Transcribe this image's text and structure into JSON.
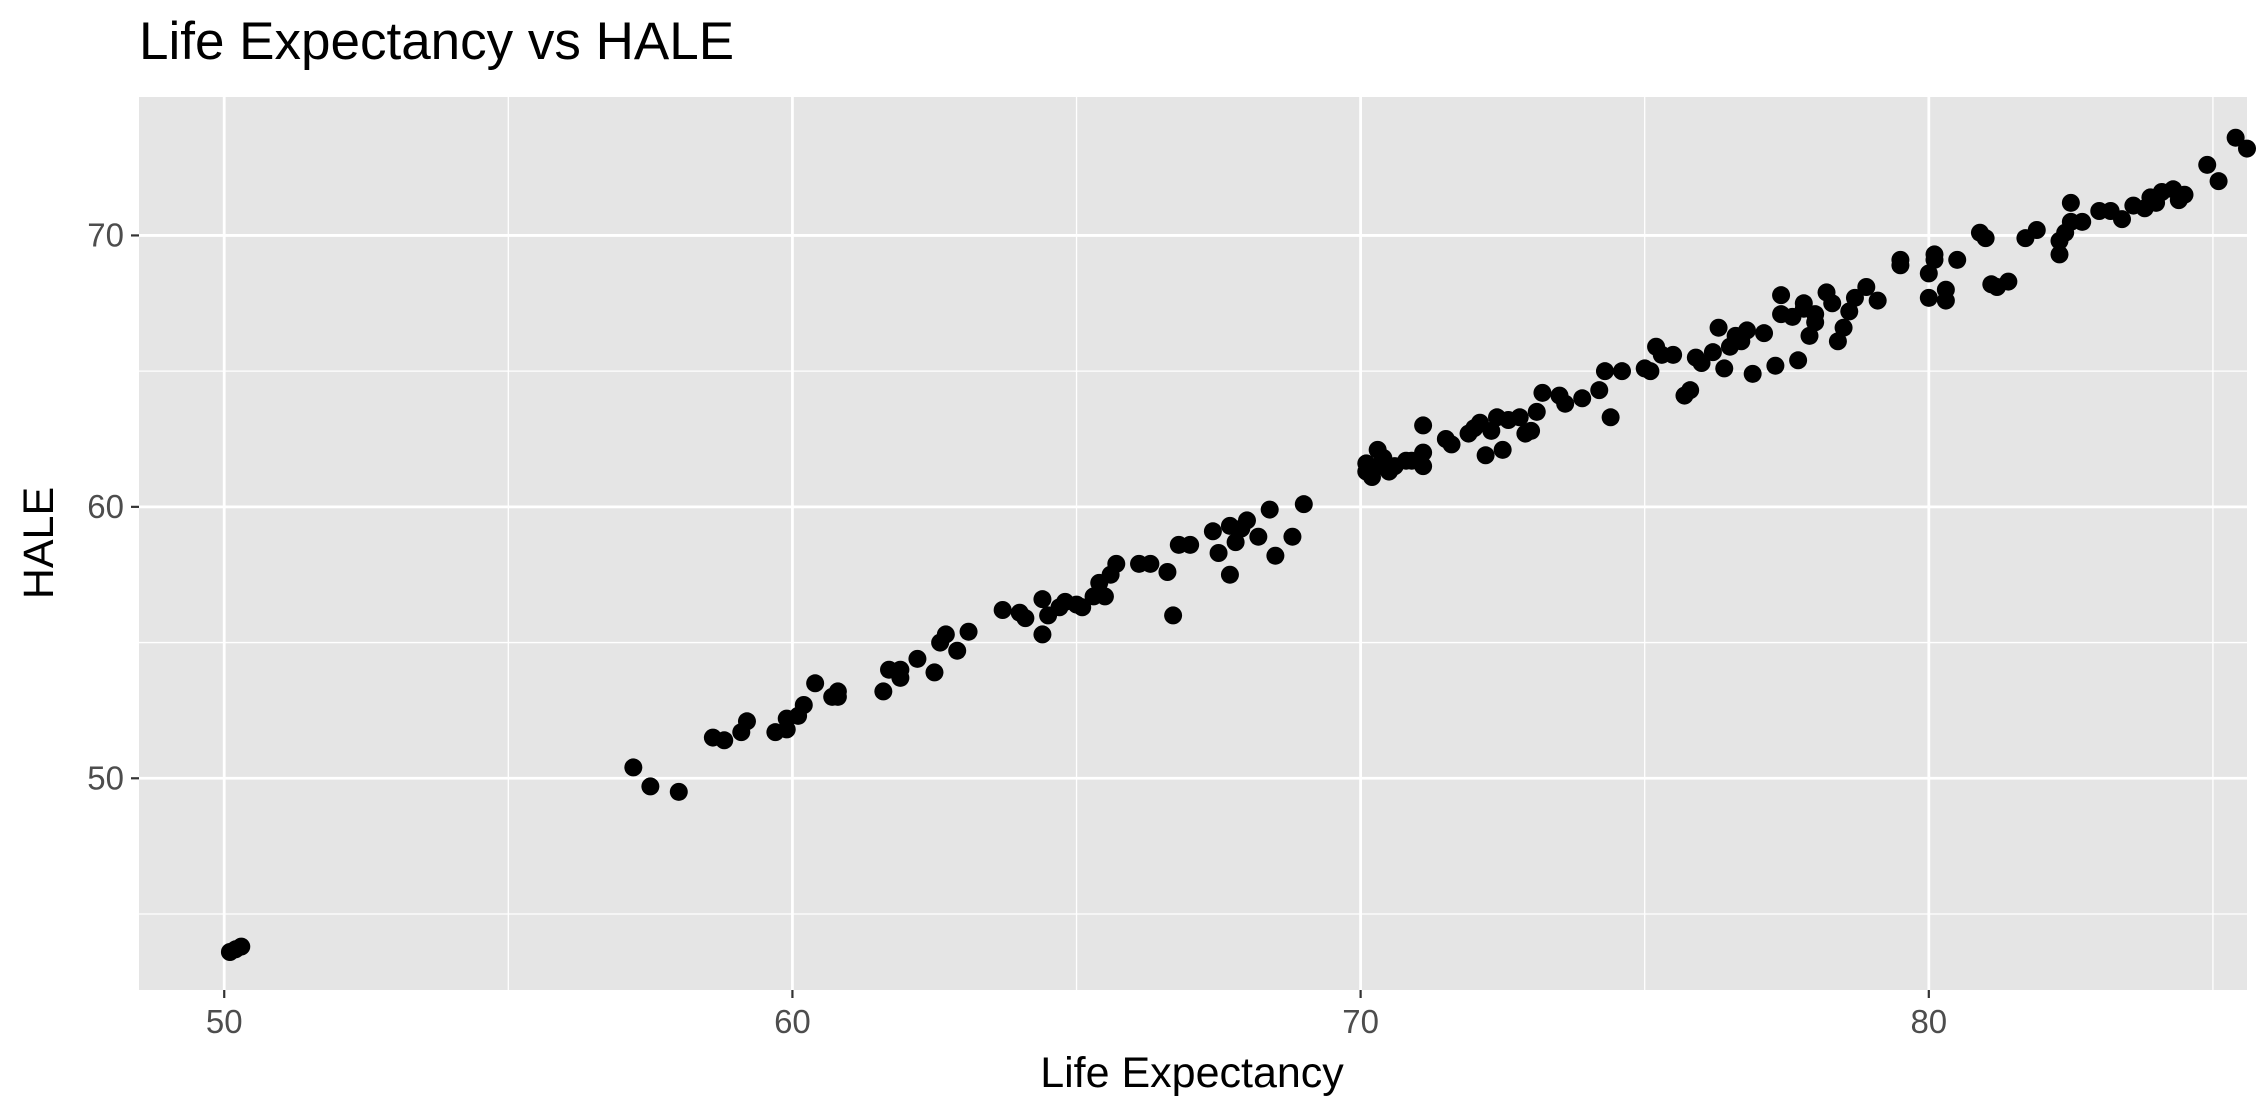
{
  "chart_data": {
    "type": "scatter",
    "title": "Life Expectancy vs HALE",
    "xlabel": "Life Expectancy",
    "ylabel": "HALE",
    "xlim": [
      48.5,
      85.6
    ],
    "ylim": [
      42.2,
      75.1
    ],
    "x_ticks": [
      50,
      60,
      70,
      80
    ],
    "x_tick_labels": [
      "50",
      "60",
      "70",
      "80"
    ],
    "y_ticks": [
      50,
      60,
      70
    ],
    "y_tick_labels": [
      "50",
      "60",
      "70"
    ],
    "x_minor_gridlines": [
      55,
      65,
      75,
      85
    ],
    "y_minor_gridlines": [
      45,
      55,
      65
    ],
    "grid": true,
    "legend": "none",
    "colors": {
      "panel_background": "#e5e5e5",
      "gridline": "#ffffff",
      "point": "#000000",
      "tick_label": "#4d4d4d",
      "text": "#000000"
    },
    "points": [
      {
        "x": 50.1,
        "y": 43.6
      },
      {
        "x": 50.2,
        "y": 43.7
      },
      {
        "x": 50.3,
        "y": 43.8
      },
      {
        "x": 57.2,
        "y": 50.4
      },
      {
        "x": 57.5,
        "y": 49.7
      },
      {
        "x": 58.0,
        "y": 49.5
      },
      {
        "x": 58.6,
        "y": 51.5
      },
      {
        "x": 58.8,
        "y": 51.4
      },
      {
        "x": 59.1,
        "y": 51.7
      },
      {
        "x": 59.2,
        "y": 52.1
      },
      {
        "x": 59.7,
        "y": 51.7
      },
      {
        "x": 59.9,
        "y": 51.8
      },
      {
        "x": 59.9,
        "y": 52.2
      },
      {
        "x": 60.1,
        "y": 52.3
      },
      {
        "x": 60.2,
        "y": 52.7
      },
      {
        "x": 60.4,
        "y": 53.5
      },
      {
        "x": 60.7,
        "y": 53.0
      },
      {
        "x": 60.8,
        "y": 53.2
      },
      {
        "x": 60.8,
        "y": 53.0
      },
      {
        "x": 61.6,
        "y": 53.2
      },
      {
        "x": 61.7,
        "y": 54.0
      },
      {
        "x": 61.9,
        "y": 54.0
      },
      {
        "x": 61.9,
        "y": 53.7
      },
      {
        "x": 62.2,
        "y": 54.4
      },
      {
        "x": 62.5,
        "y": 53.9
      },
      {
        "x": 62.6,
        "y": 55.0
      },
      {
        "x": 62.7,
        "y": 55.3
      },
      {
        "x": 62.9,
        "y": 54.7
      },
      {
        "x": 63.1,
        "y": 55.4
      },
      {
        "x": 63.7,
        "y": 56.2
      },
      {
        "x": 64.0,
        "y": 56.1
      },
      {
        "x": 64.1,
        "y": 55.9
      },
      {
        "x": 64.4,
        "y": 56.6
      },
      {
        "x": 64.4,
        "y": 55.3
      },
      {
        "x": 64.5,
        "y": 56.0
      },
      {
        "x": 64.7,
        "y": 56.3
      },
      {
        "x": 64.8,
        "y": 56.5
      },
      {
        "x": 65.0,
        "y": 56.4
      },
      {
        "x": 65.1,
        "y": 56.3
      },
      {
        "x": 65.3,
        "y": 56.7
      },
      {
        "x": 65.4,
        "y": 57.2
      },
      {
        "x": 65.5,
        "y": 56.7
      },
      {
        "x": 65.6,
        "y": 57.5
      },
      {
        "x": 65.7,
        "y": 57.9
      },
      {
        "x": 66.1,
        "y": 57.9
      },
      {
        "x": 66.3,
        "y": 57.9
      },
      {
        "x": 66.6,
        "y": 57.6
      },
      {
        "x": 66.7,
        "y": 56.0
      },
      {
        "x": 66.8,
        "y": 58.6
      },
      {
        "x": 67.0,
        "y": 58.6
      },
      {
        "x": 67.4,
        "y": 59.1
      },
      {
        "x": 67.5,
        "y": 58.3
      },
      {
        "x": 67.7,
        "y": 59.3
      },
      {
        "x": 67.7,
        "y": 57.5
      },
      {
        "x": 67.8,
        "y": 58.7
      },
      {
        "x": 67.9,
        "y": 59.2
      },
      {
        "x": 68.0,
        "y": 59.5
      },
      {
        "x": 68.2,
        "y": 58.9
      },
      {
        "x": 68.4,
        "y": 59.9
      },
      {
        "x": 68.5,
        "y": 58.2
      },
      {
        "x": 68.8,
        "y": 58.9
      },
      {
        "x": 69.0,
        "y": 60.1
      },
      {
        "x": 70.1,
        "y": 61.3
      },
      {
        "x": 70.1,
        "y": 61.6
      },
      {
        "x": 70.2,
        "y": 61.1
      },
      {
        "x": 70.3,
        "y": 61.5
      },
      {
        "x": 70.3,
        "y": 62.1
      },
      {
        "x": 70.4,
        "y": 61.8
      },
      {
        "x": 70.5,
        "y": 61.3
      },
      {
        "x": 70.6,
        "y": 61.5
      },
      {
        "x": 70.8,
        "y": 61.7
      },
      {
        "x": 70.9,
        "y": 61.7
      },
      {
        "x": 71.1,
        "y": 61.5
      },
      {
        "x": 71.1,
        "y": 62.0
      },
      {
        "x": 71.1,
        "y": 63.0
      },
      {
        "x": 71.5,
        "y": 62.5
      },
      {
        "x": 71.6,
        "y": 62.3
      },
      {
        "x": 71.9,
        "y": 62.7
      },
      {
        "x": 72.0,
        "y": 62.9
      },
      {
        "x": 72.1,
        "y": 63.1
      },
      {
        "x": 72.2,
        "y": 61.9
      },
      {
        "x": 72.3,
        "y": 62.8
      },
      {
        "x": 72.4,
        "y": 63.3
      },
      {
        "x": 72.5,
        "y": 62.1
      },
      {
        "x": 72.6,
        "y": 63.2
      },
      {
        "x": 72.8,
        "y": 63.3
      },
      {
        "x": 72.9,
        "y": 62.7
      },
      {
        "x": 73.0,
        "y": 62.8
      },
      {
        "x": 73.1,
        "y": 63.5
      },
      {
        "x": 73.2,
        "y": 64.2
      },
      {
        "x": 73.5,
        "y": 64.1
      },
      {
        "x": 73.6,
        "y": 63.8
      },
      {
        "x": 73.9,
        "y": 64.0
      },
      {
        "x": 74.2,
        "y": 64.3
      },
      {
        "x": 74.3,
        "y": 65.0
      },
      {
        "x": 74.4,
        "y": 63.3
      },
      {
        "x": 74.6,
        "y": 65.0
      },
      {
        "x": 75.0,
        "y": 65.1
      },
      {
        "x": 75.1,
        "y": 65.0
      },
      {
        "x": 75.2,
        "y": 65.9
      },
      {
        "x": 75.3,
        "y": 65.6
      },
      {
        "x": 75.5,
        "y": 65.6
      },
      {
        "x": 75.7,
        "y": 64.1
      },
      {
        "x": 75.8,
        "y": 64.3
      },
      {
        "x": 75.9,
        "y": 65.5
      },
      {
        "x": 76.0,
        "y": 65.3
      },
      {
        "x": 76.2,
        "y": 65.7
      },
      {
        "x": 76.3,
        "y": 66.6
      },
      {
        "x": 76.4,
        "y": 65.1
      },
      {
        "x": 76.5,
        "y": 65.9
      },
      {
        "x": 76.6,
        "y": 66.3
      },
      {
        "x": 76.7,
        "y": 66.1
      },
      {
        "x": 76.8,
        "y": 66.5
      },
      {
        "x": 76.9,
        "y": 64.9
      },
      {
        "x": 77.1,
        "y": 66.4
      },
      {
        "x": 77.3,
        "y": 65.2
      },
      {
        "x": 77.4,
        "y": 67.1
      },
      {
        "x": 77.4,
        "y": 67.8
      },
      {
        "x": 77.6,
        "y": 67.0
      },
      {
        "x": 77.7,
        "y": 65.4
      },
      {
        "x": 77.8,
        "y": 67.3
      },
      {
        "x": 77.8,
        "y": 67.5
      },
      {
        "x": 77.9,
        "y": 66.3
      },
      {
        "x": 78.0,
        "y": 67.1
      },
      {
        "x": 78.0,
        "y": 66.8
      },
      {
        "x": 78.2,
        "y": 67.9
      },
      {
        "x": 78.3,
        "y": 67.5
      },
      {
        "x": 78.4,
        "y": 66.1
      },
      {
        "x": 78.5,
        "y": 66.6
      },
      {
        "x": 78.6,
        "y": 67.2
      },
      {
        "x": 78.7,
        "y": 67.7
      },
      {
        "x": 78.9,
        "y": 68.1
      },
      {
        "x": 79.1,
        "y": 67.6
      },
      {
        "x": 79.5,
        "y": 69.1
      },
      {
        "x": 79.5,
        "y": 68.9
      },
      {
        "x": 80.0,
        "y": 68.6
      },
      {
        "x": 80.0,
        "y": 67.7
      },
      {
        "x": 80.1,
        "y": 69.3
      },
      {
        "x": 80.1,
        "y": 69.1
      },
      {
        "x": 80.3,
        "y": 68.0
      },
      {
        "x": 80.3,
        "y": 67.6
      },
      {
        "x": 80.5,
        "y": 69.1
      },
      {
        "x": 80.9,
        "y": 70.1
      },
      {
        "x": 81.0,
        "y": 69.9
      },
      {
        "x": 81.1,
        "y": 68.2
      },
      {
        "x": 81.2,
        "y": 68.1
      },
      {
        "x": 81.4,
        "y": 68.3
      },
      {
        "x": 81.7,
        "y": 69.9
      },
      {
        "x": 81.9,
        "y": 70.2
      },
      {
        "x": 82.3,
        "y": 69.3
      },
      {
        "x": 82.3,
        "y": 69.8
      },
      {
        "x": 82.4,
        "y": 70.1
      },
      {
        "x": 82.5,
        "y": 70.5
      },
      {
        "x": 82.5,
        "y": 71.2
      },
      {
        "x": 82.7,
        "y": 70.5
      },
      {
        "x": 83.0,
        "y": 70.9
      },
      {
        "x": 83.2,
        "y": 70.9
      },
      {
        "x": 83.4,
        "y": 70.6
      },
      {
        "x": 83.6,
        "y": 71.1
      },
      {
        "x": 83.8,
        "y": 71.0
      },
      {
        "x": 83.9,
        "y": 71.4
      },
      {
        "x": 84.0,
        "y": 71.2
      },
      {
        "x": 84.1,
        "y": 71.6
      },
      {
        "x": 84.3,
        "y": 71.7
      },
      {
        "x": 84.4,
        "y": 71.3
      },
      {
        "x": 84.5,
        "y": 71.5
      },
      {
        "x": 84.9,
        "y": 72.6
      },
      {
        "x": 85.1,
        "y": 72.0
      },
      {
        "x": 85.4,
        "y": 73.6
      },
      {
        "x": 85.6,
        "y": 73.2
      }
    ]
  }
}
